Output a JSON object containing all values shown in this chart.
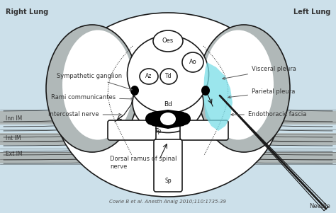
{
  "bg_color": "#cce0ea",
  "citation": "Cowie B et al. Anesth Analg 2010;110:1735-39",
  "right_lung_label": "Right Lung",
  "left_lung_label": "Left Lung",
  "needle_label": "Needle",
  "outline_color": "#1a1a1a",
  "white_color": "#ffffff",
  "gray_color": "#b0b8b8",
  "cyan_color": "#7adee8",
  "cyan_alpha": 0.75,
  "dark_gray": "#808888"
}
